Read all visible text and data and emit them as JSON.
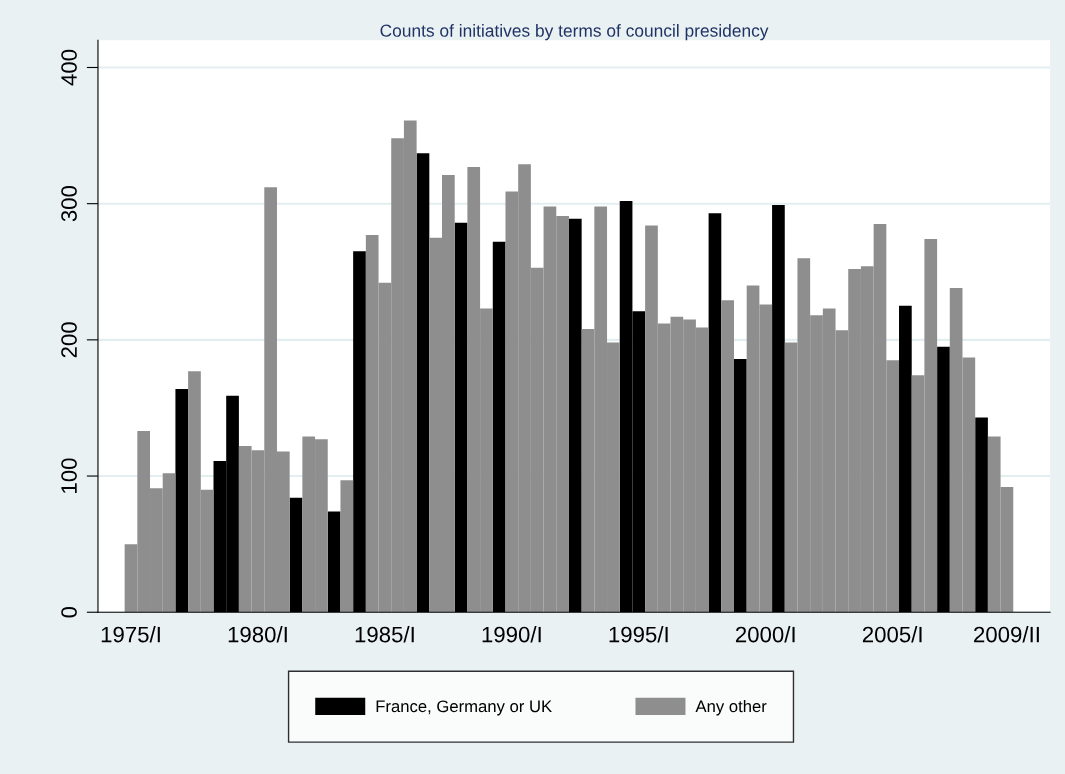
{
  "chart_data": {
    "type": "bar",
    "title": "Counts of initiatives by terms of council presidency",
    "categories": [
      "1975/I",
      null,
      null,
      null,
      null,
      null,
      null,
      null,
      null,
      null,
      "1980/I",
      null,
      null,
      null,
      null,
      null,
      null,
      null,
      null,
      null,
      "1985/I",
      null,
      null,
      null,
      null,
      null,
      null,
      null,
      null,
      null,
      "1990/I",
      null,
      null,
      null,
      null,
      null,
      null,
      null,
      null,
      null,
      "1995/I",
      null,
      null,
      null,
      null,
      null,
      null,
      null,
      null,
      null,
      "2000/I",
      null,
      null,
      null,
      null,
      null,
      null,
      null,
      null,
      null,
      "2005/I",
      null,
      null,
      null,
      null,
      null,
      null,
      null,
      null,
      "2009/II"
    ],
    "series": [
      {
        "name": "France, Germany or UK",
        "color": "#000000",
        "values": [
          null,
          null,
          null,
          null,
          164,
          null,
          null,
          111,
          159,
          null,
          null,
          null,
          null,
          84,
          null,
          null,
          74,
          null,
          265,
          null,
          null,
          null,
          null,
          337,
          null,
          null,
          286,
          null,
          null,
          272,
          null,
          null,
          null,
          null,
          null,
          289,
          null,
          null,
          null,
          302,
          221,
          null,
          null,
          null,
          null,
          null,
          293,
          null,
          186,
          null,
          null,
          299,
          null,
          null,
          null,
          null,
          null,
          null,
          null,
          null,
          null,
          225,
          null,
          null,
          195,
          null,
          null,
          143,
          null,
          null
        ]
      },
      {
        "name": "Any other",
        "color": "#8e8e8e",
        "values": [
          50,
          133,
          91,
          102,
          null,
          177,
          90,
          null,
          null,
          122,
          119,
          312,
          118,
          null,
          129,
          127,
          null,
          97,
          null,
          277,
          242,
          348,
          361,
          null,
          275,
          321,
          null,
          327,
          223,
          null,
          309,
          329,
          253,
          298,
          291,
          null,
          208,
          298,
          198,
          null,
          null,
          284,
          212,
          217,
          215,
          209,
          null,
          229,
          null,
          240,
          226,
          null,
          198,
          260,
          218,
          223,
          207,
          252,
          254,
          285,
          185,
          null,
          174,
          274,
          null,
          238,
          187,
          null,
          129,
          92
        ]
      }
    ],
    "ylim": [
      0,
      420
    ],
    "yticks": [
      0,
      100,
      200,
      300,
      400
    ],
    "grid": "y",
    "legend": "bottom"
  }
}
